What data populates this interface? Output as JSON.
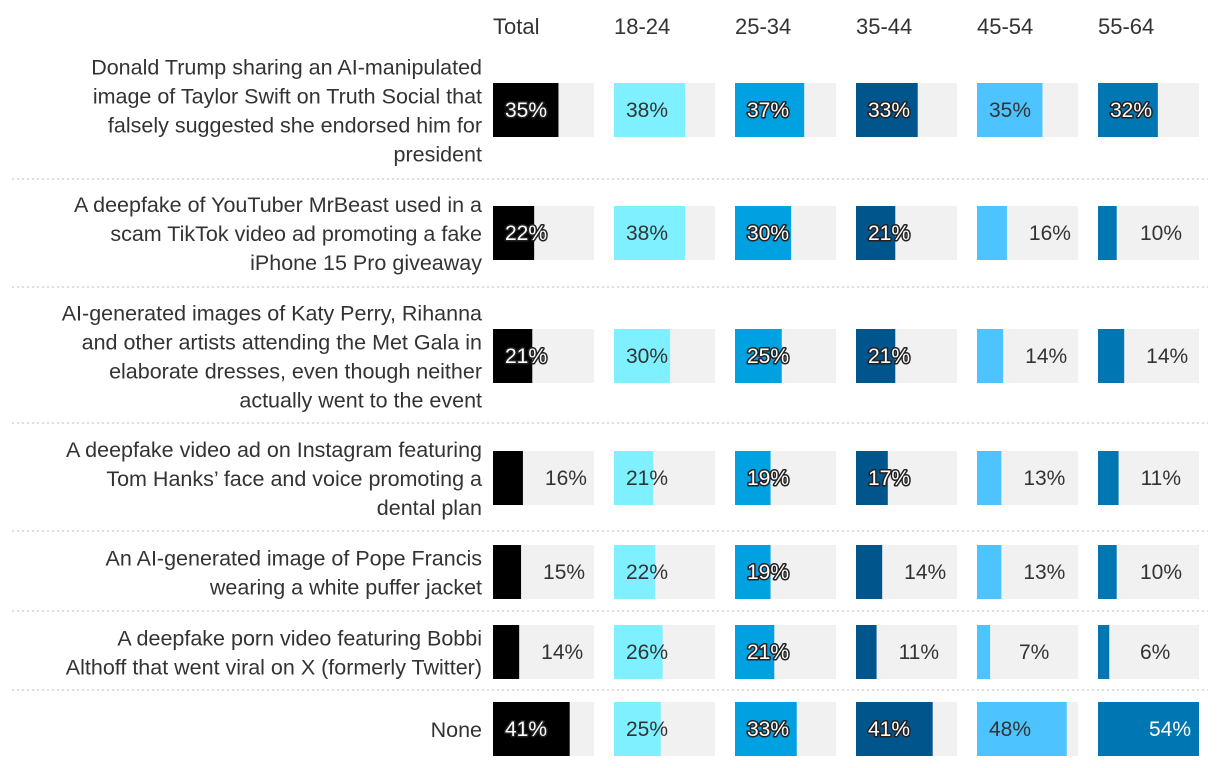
{
  "chart_data": {
    "type": "bar",
    "columns": [
      "Total",
      "18-24",
      "25-34",
      "35-44",
      "45-54",
      "55-64"
    ],
    "categories": [
      [
        "Donald Trump sharing an AI-manipulated",
        "image of Taylor Swift on Truth Social that",
        "falsely suggested she endorsed him for",
        "president"
      ],
      [
        "A deepfake of YouTuber MrBeast used in a",
        "scam TikTok video ad promoting a fake",
        "iPhone 15 Pro giveaway"
      ],
      [
        "AI-generated images of Katy Perry, Rihanna",
        "and other artists attending the Met Gala in",
        "elaborate dresses, even though neither",
        "actually went to the event"
      ],
      [
        "A deepfake video ad on Instagram featuring",
        "Tom Hanks’ face and voice promoting a",
        "dental plan"
      ],
      [
        "An AI-generated image of Pope Francis",
        "wearing a white puffer jacket"
      ],
      [
        "A deepfake porn video featuring Bobbi",
        "Althoff that went viral on X (formerly Twitter)"
      ],
      [
        "None"
      ]
    ],
    "values": [
      [
        35,
        38,
        37,
        33,
        35,
        32
      ],
      [
        22,
        38,
        30,
        21,
        16,
        10
      ],
      [
        21,
        30,
        25,
        21,
        14,
        14
      ],
      [
        16,
        21,
        19,
        17,
        13,
        11
      ],
      [
        15,
        22,
        19,
        14,
        13,
        10
      ],
      [
        14,
        26,
        21,
        11,
        7,
        6
      ],
      [
        41,
        25,
        33,
        41,
        48,
        54
      ]
    ],
    "value_suffix": "%",
    "xlim": [
      0,
      54
    ],
    "colors": [
      "#000000",
      "#7ff0ff",
      "#00a1e0",
      "#00558c",
      "#4dc4ff",
      "#0077b3"
    ],
    "track_color": "#f1f1f1"
  }
}
